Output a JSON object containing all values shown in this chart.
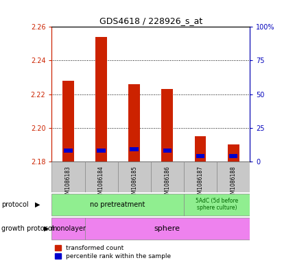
{
  "title": "GDS4618 / 228926_s_at",
  "samples": [
    "GSM1086183",
    "GSM1086184",
    "GSM1086185",
    "GSM1086186",
    "GSM1086187",
    "GSM1086188"
  ],
  "transformed_counts": [
    2.228,
    2.254,
    2.226,
    2.223,
    2.195,
    2.19
  ],
  "percentile_ranks": [
    8,
    8,
    9,
    8,
    4,
    4
  ],
  "ylim_left": [
    2.18,
    2.26
  ],
  "ylim_right": [
    0,
    100
  ],
  "yticks_left": [
    2.18,
    2.2,
    2.22,
    2.24,
    2.26
  ],
  "yticks_right": [
    0,
    25,
    50,
    75,
    100
  ],
  "ytick_labels_right": [
    "0",
    "25",
    "50",
    "75",
    "100%"
  ],
  "base_value": 2.18,
  "bar_width": 0.35,
  "red_color": "#CC2200",
  "blue_color": "#0000CC",
  "label_color_left": "#CC2200",
  "label_color_right": "#0000BB",
  "protocol_green": "#90EE90",
  "growth_pink": "#EE82EE",
  "grey_box": "#C8C8C8"
}
